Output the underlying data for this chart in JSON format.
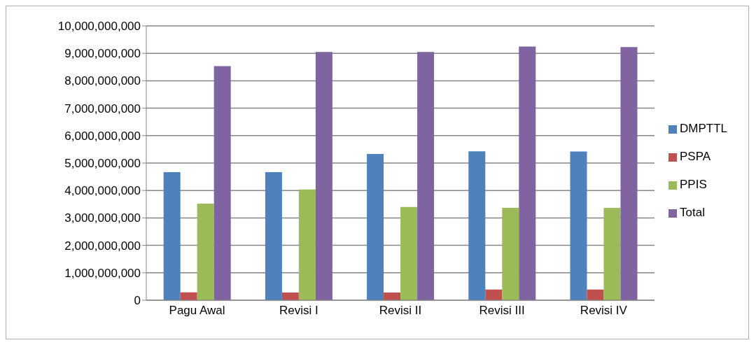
{
  "chart_data": {
    "type": "bar",
    "categories": [
      "Pagu Awal",
      "Revisi I",
      "Revisi II",
      "Revisi III",
      "Revisi IV"
    ],
    "series": [
      {
        "name": "DMPTTL",
        "color": "#4f81bd",
        "values": [
          4670000000,
          4670000000,
          5330000000,
          5430000000,
          5420000000
        ]
      },
      {
        "name": "PSPA",
        "color": "#c0504d",
        "values": [
          290000000,
          280000000,
          280000000,
          390000000,
          390000000
        ]
      },
      {
        "name": "PPIS",
        "color": "#9bbb59",
        "values": [
          3520000000,
          4040000000,
          3400000000,
          3370000000,
          3370000000
        ]
      },
      {
        "name": "Total",
        "color": "#8064a2",
        "values": [
          8530000000,
          9050000000,
          9050000000,
          9250000000,
          9230000000
        ]
      }
    ],
    "ylim": [
      0,
      10000000000
    ],
    "yticks": [
      0,
      {
        "value": 1000000000,
        "label": "1,000,000,000"
      },
      {
        "value": 2000000000,
        "label": "2,000,000,000"
      },
      {
        "value": 3000000000,
        "label": "3,000,000,000"
      },
      {
        "value": 4000000000,
        "label": "4,000,000,000"
      },
      {
        "value": 5000000000,
        "label": "5,000,000,000"
      },
      {
        "value": 6000000000,
        "label": "6,000,000,000"
      },
      {
        "value": 7000000000,
        "label": "7,000,000,000"
      },
      {
        "value": 8000000000,
        "label": "8,000,000,000"
      },
      {
        "value": 9000000000,
        "label": "9,000,000,000"
      },
      {
        "value": 10000000000,
        "label": "10,000,000,000"
      }
    ],
    "grid": "y",
    "legend": "right"
  }
}
